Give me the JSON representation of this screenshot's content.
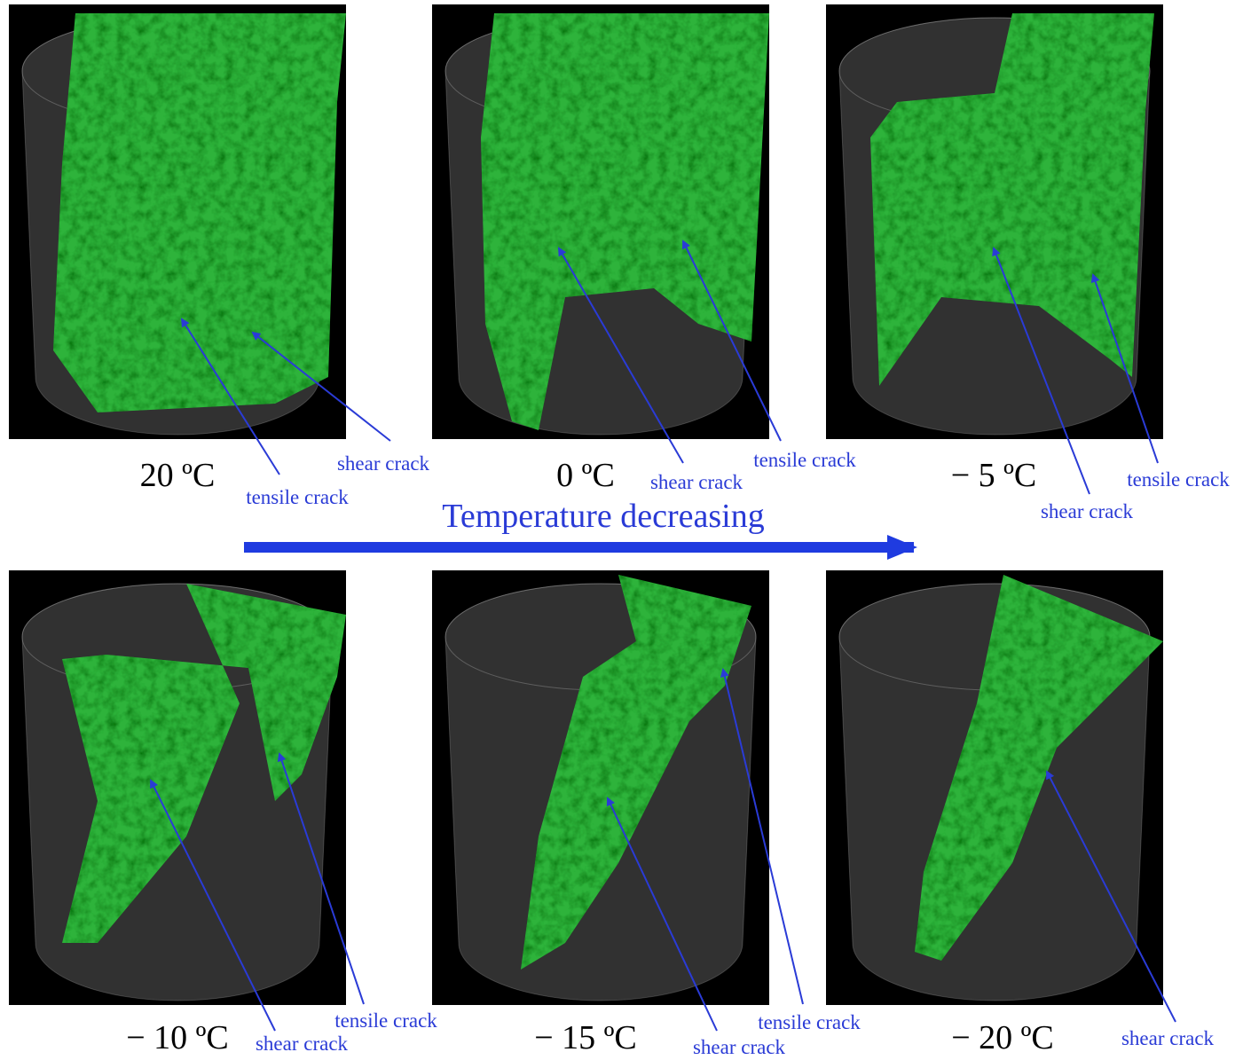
{
  "title": "Temperature decreasing",
  "panels": [
    {
      "label": "20 ºC",
      "annotations": [
        "tensile crack",
        "shear crack"
      ]
    },
    {
      "label": "0 ºC",
      "annotations": [
        "shear crack",
        "tensile crack"
      ]
    },
    {
      "label": "− 5 ºC",
      "annotations": [
        "tensile crack",
        "shear crack"
      ]
    },
    {
      "label": "− 10 ºC",
      "annotations": [
        "tensile crack",
        "shear crack"
      ]
    },
    {
      "label": "− 15 ºC",
      "annotations": [
        "tensile crack",
        "shear crack"
      ]
    },
    {
      "label": "− 20 ºC",
      "annotations": [
        "shear crack"
      ]
    }
  ]
}
